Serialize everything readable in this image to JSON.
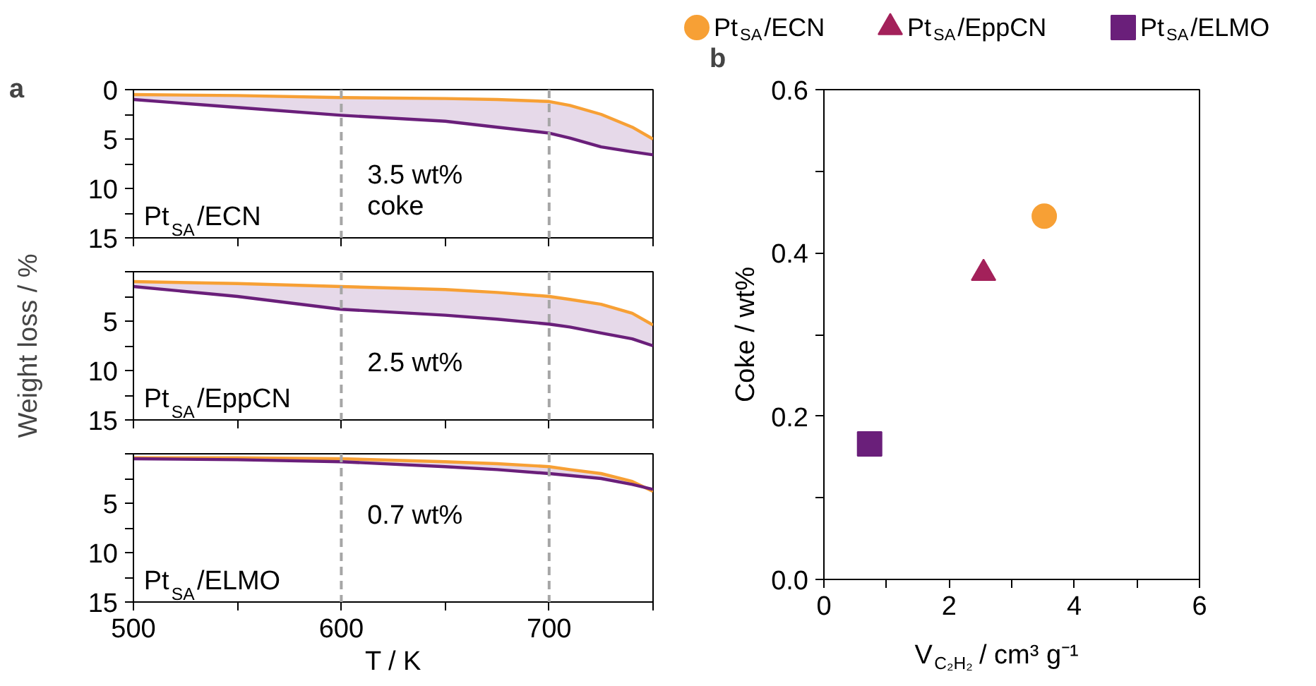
{
  "chart_data": [
    {
      "type": "line",
      "title": "a",
      "x": [
        500,
        550,
        600,
        650,
        675,
        700,
        710,
        725,
        740,
        750
      ],
      "xlim": [
        500,
        750
      ],
      "xticks": [
        500,
        {
          "value": 550,
          "label": null
        },
        600,
        {
          "value": 650,
          "label": null
        },
        700,
        {
          "value": 750,
          "label": null
        }
      ],
      "ylim": [
        15,
        0
      ],
      "yticks": [
        0,
        {
          "value": 2.5,
          "label": null
        },
        5,
        {
          "value": 7.5,
          "label": null
        },
        10,
        {
          "value": 12.5,
          "label": null
        },
        15
      ],
      "tick_labels": "y",
      "grid": false,
      "series": [
        {
          "color": "#f7a035",
          "values": [
            0.5,
            0.6,
            0.8,
            0.9,
            1.0,
            1.2,
            1.6,
            2.5,
            3.8,
            5.0
          ]
        },
        {
          "color": "#6a1f7a",
          "values": [
            1.0,
            1.8,
            2.6,
            3.2,
            3.8,
            4.4,
            4.9,
            5.8,
            6.3,
            6.6
          ],
          "lower": [
            0.5,
            0.6,
            0.8,
            0.9,
            1.0,
            1.2,
            1.6,
            2.5,
            3.8,
            5.0
          ],
          "upper": [
            1.0,
            1.8,
            2.6,
            3.2,
            3.8,
            4.4,
            4.9,
            5.8,
            6.3,
            6.6
          ]
        }
      ],
      "ref_lines": [
        {
          "axis": "x",
          "value": 600,
          "color": "#a6a6a6",
          "line_style": "dashed"
        },
        {
          "axis": "x",
          "value": 700,
          "color": "#a6a6a6",
          "line_style": "dashed"
        }
      ],
      "annotations": [
        "Pt$_{SA}$/ECN",
        "3.5 wt%\ncoke"
      ]
    },
    {
      "type": "line",
      "x": [
        500,
        550,
        600,
        650,
        675,
        700,
        710,
        725,
        740,
        750
      ],
      "xlim": [
        500,
        750
      ],
      "xticks": [
        500,
        {
          "value": 550,
          "label": null
        },
        600,
        {
          "value": 650,
          "label": null
        },
        700,
        {
          "value": 750,
          "label": null
        }
      ],
      "ylim": [
        15,
        0
      ],
      "yticks": [
        {
          "value": 0,
          "label": null
        },
        {
          "value": 2.5,
          "label": null
        },
        5,
        {
          "value": 7.5,
          "label": null
        },
        10,
        {
          "value": 12.5,
          "label": null
        },
        15
      ],
      "tick_labels": "y",
      "grid": false,
      "ylabel": "Weight loss / %",
      "series": [
        {
          "color": "#f7a035",
          "values": [
            1.0,
            1.2,
            1.5,
            1.8,
            2.1,
            2.5,
            2.8,
            3.3,
            4.2,
            5.4
          ]
        },
        {
          "color": "#6a1f7a",
          "values": [
            1.5,
            2.5,
            3.8,
            4.4,
            4.8,
            5.3,
            5.6,
            6.2,
            6.8,
            7.5
          ],
          "lower": [
            1.0,
            1.2,
            1.5,
            1.8,
            2.1,
            2.5,
            2.8,
            3.3,
            4.2,
            5.4
          ],
          "upper": [
            1.5,
            2.5,
            3.8,
            4.4,
            4.8,
            5.3,
            5.6,
            6.2,
            6.8,
            7.5
          ]
        }
      ],
      "ref_lines": [
        {
          "axis": "x",
          "value": 600,
          "color": "#a6a6a6",
          "line_style": "dashed"
        },
        {
          "axis": "x",
          "value": 700,
          "color": "#a6a6a6",
          "line_style": "dashed"
        }
      ],
      "annotations": [
        "Pt$_{SA}$/EppCN",
        "2.5 wt%"
      ]
    },
    {
      "type": "line",
      "x": [
        500,
        550,
        600,
        650,
        675,
        700,
        710,
        725,
        740,
        750
      ],
      "xlim": [
        500,
        750
      ],
      "xticks": [
        500,
        {
          "value": 550,
          "label": null
        },
        600,
        {
          "value": 650,
          "label": null
        },
        700,
        {
          "value": 750,
          "label": null
        }
      ],
      "ylim": [
        15,
        0
      ],
      "yticks": [
        {
          "value": 0,
          "label": null
        },
        {
          "value": 2.5,
          "label": null
        },
        5,
        {
          "value": 7.5,
          "label": null
        },
        10,
        {
          "value": 12.5,
          "label": null
        },
        15
      ],
      "grid": false,
      "xlabel": "T / K",
      "series": [
        {
          "color": "#f7a035",
          "values": [
            0.4,
            0.4,
            0.5,
            0.8,
            1.0,
            1.3,
            1.6,
            2.0,
            2.8,
            3.8
          ]
        },
        {
          "color": "#6a1f7a",
          "values": [
            0.5,
            0.6,
            0.8,
            1.3,
            1.6,
            2.0,
            2.2,
            2.5,
            3.1,
            3.6
          ],
          "lower": [
            0.4,
            0.4,
            0.5,
            0.8,
            1.0,
            1.3,
            1.6,
            2.0,
            2.8,
            3.8
          ],
          "upper": [
            0.5,
            0.6,
            0.8,
            1.3,
            1.6,
            2.0,
            2.2,
            2.5,
            3.1,
            3.6
          ]
        }
      ],
      "ref_lines": [
        {
          "axis": "x",
          "value": 600,
          "color": "#a6a6a6",
          "line_style": "dashed"
        },
        {
          "axis": "x",
          "value": 700,
          "color": "#a6a6a6",
          "line_style": "dashed"
        }
      ],
      "annotations": [
        "Pt$_{SA}$/ELMO",
        "0.7 wt%"
      ]
    },
    {
      "type": "scatter",
      "title": "b",
      "xlabel": "V$_{C₂H₂}$ / cm³ g⁻¹",
      "ylabel": "Coke / wt%",
      "xlim": [
        0,
        6
      ],
      "xticks": [
        0,
        {
          "value": 1,
          "label": null
        },
        2,
        {
          "value": 3,
          "label": null
        },
        4,
        {
          "value": 5,
          "label": null
        },
        6
      ],
      "ylim": [
        0,
        0.6
      ],
      "yticks": [
        {
          "value": 0,
          "label": "0.0"
        },
        {
          "value": 0.1,
          "label": null
        },
        {
          "value": 0.2,
          "label": "0.2"
        },
        {
          "value": 0.3,
          "label": null
        },
        {
          "value": 0.4,
          "label": "0.4"
        },
        {
          "value": 0.5,
          "label": null
        },
        {
          "value": 0.6,
          "label": "0.6"
        }
      ],
      "grid": false,
      "legend": "top",
      "series": [
        {
          "name": "Pt$_{SA}$/ECN",
          "color": "#f7a035",
          "marker": "circle",
          "x": [
            3.52
          ],
          "values": [
            0.445
          ]
        },
        {
          "name": "Pt$_{SA}$/EppCN",
          "color": "#a3215a",
          "marker": "triangle",
          "x": [
            2.55
          ],
          "values": [
            0.375
          ]
        },
        {
          "name": "Pt$_{SA}$/ELMO",
          "color": "#6a1f7a",
          "marker": "square",
          "x": [
            0.73
          ],
          "values": [
            0.166
          ]
        }
      ]
    }
  ]
}
